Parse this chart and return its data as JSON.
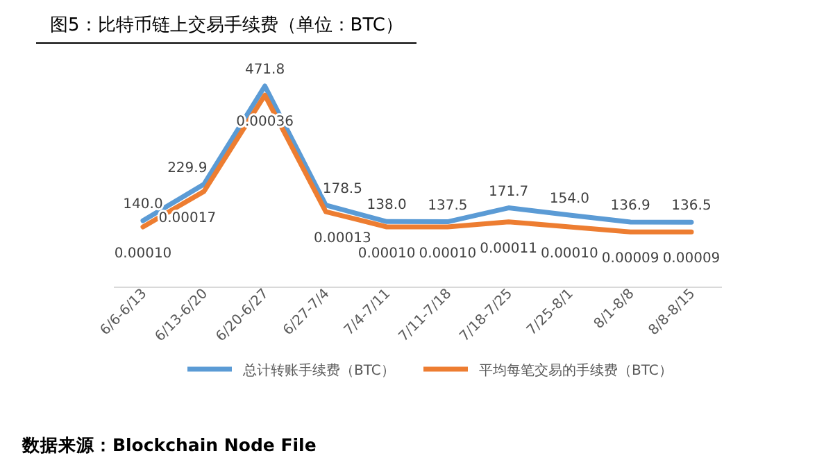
{
  "chart_data": {
    "type": "line",
    "title": "图5：比特币链上交易手续费（单位：BTC）",
    "categories": [
      "6/6-6/13",
      "6/13-6/20",
      "6/20-6/27",
      "6/27-7/4",
      "7/4-7/11",
      "7/11-7/18",
      "7/18-7/25",
      "7/25-8/1",
      "8/1-8/8",
      "8/8-8/15"
    ],
    "series": [
      {
        "name": "总计转账手续费（BTC）",
        "color": "#5b9bd5",
        "values": [
          140.0,
          229.9,
          471.8,
          178.5,
          138.0,
          137.5,
          171.7,
          154.0,
          136.9,
          136.5
        ],
        "value_labels": [
          "140.0",
          "229.9",
          "471.8",
          "178.5",
          "138.0",
          "137.5",
          "171.7",
          "154.0",
          "136.9",
          "136.5"
        ]
      },
      {
        "name": "平均每笔交易的手续费（BTC）",
        "color": "#ed7d31",
        "axis": "y2",
        "values": [
          0.0001,
          0.00017,
          0.00036,
          0.00013,
          0.0001,
          0.0001,
          0.00011,
          0.0001,
          9e-05,
          9e-05
        ],
        "value_labels": [
          "0.00010",
          "0.00017",
          "0.00036",
          "0.00013",
          "0.00010",
          "0.00010",
          "0.00011",
          "0.00010",
          "0.00009",
          "0.00009"
        ]
      }
    ],
    "relative": false,
    "legend": "bottom",
    "marker": "none",
    "line_style": "solid",
    "annotations": [
      "数据来源：Blockchain Node File"
    ]
  }
}
